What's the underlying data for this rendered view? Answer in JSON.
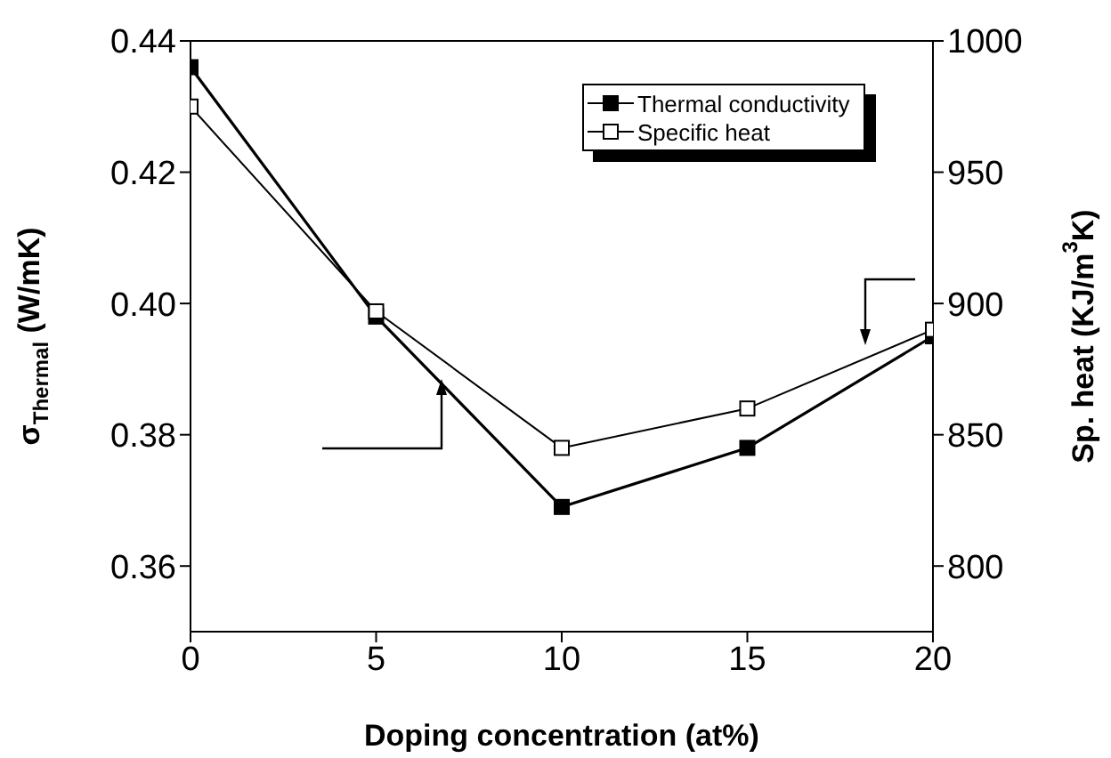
{
  "chart_data": {
    "type": "line",
    "xlabel": "Doping concentration (at%)",
    "ylabel": "σ$_{Thermal}$ (W/mK)",
    "y2label": "Sp. heat (KJ/m$^{3}$K)",
    "x": [
      0,
      5,
      10,
      15,
      20
    ],
    "series": [
      {
        "name": "Thermal conductivity",
        "color": "#000000",
        "values": [
          0.436,
          0.398,
          0.369,
          0.378,
          0.395
        ]
      },
      {
        "name": "Specific heat",
        "color": "#000000",
        "axis": "y2",
        "values": [
          975,
          897,
          845,
          860,
          890
        ]
      }
    ],
    "xlim": [
      0,
      20
    ],
    "xticks": [
      0,
      5,
      10,
      15,
      20
    ],
    "ylim": [
      0.35,
      0.44
    ],
    "yticks": [
      {
        "value": 0.36,
        "label": "0.36"
      },
      {
        "value": 0.38,
        "label": "0.38"
      },
      {
        "value": 0.4,
        "label": "0.40"
      },
      {
        "value": 0.42,
        "label": "0.42"
      },
      {
        "value": 0.44,
        "label": "0.44"
      }
    ],
    "y2lim": [
      775,
      1000
    ],
    "y2ticks": [
      800,
      850,
      900,
      950,
      1000
    ],
    "grid": false,
    "legend": "top right",
    "marker": "square",
    "line_style": "solid"
  }
}
